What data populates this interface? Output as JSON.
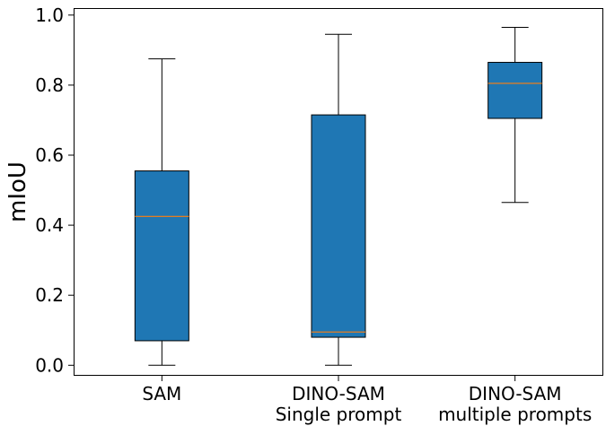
{
  "chart_data": {
    "type": "box",
    "ylabel": "mIoU",
    "ylim": [
      -0.03,
      1.02
    ],
    "yticks": [
      0.0,
      0.2,
      0.4,
      0.6,
      0.8,
      1.0
    ],
    "ytick_labels": [
      "0.0",
      "0.2",
      "0.4",
      "0.6",
      "0.8",
      "1.0"
    ],
    "grid": false,
    "box_color": "#1f77b4",
    "median_color": "#ff7f0e",
    "categories": [
      [
        "SAM"
      ],
      [
        "DINO-SAM",
        "Single prompt"
      ],
      [
        "DINO-SAM",
        "multiple prompts"
      ]
    ],
    "boxes": [
      {
        "whislo": 0.0,
        "q1": 0.07,
        "median": 0.425,
        "q3": 0.555,
        "whishi": 0.875
      },
      {
        "whislo": 0.0,
        "q1": 0.08,
        "median": 0.095,
        "q3": 0.715,
        "whishi": 0.945
      },
      {
        "whislo": 0.465,
        "q1": 0.705,
        "median": 0.805,
        "q3": 0.865,
        "whishi": 0.965
      }
    ]
  }
}
